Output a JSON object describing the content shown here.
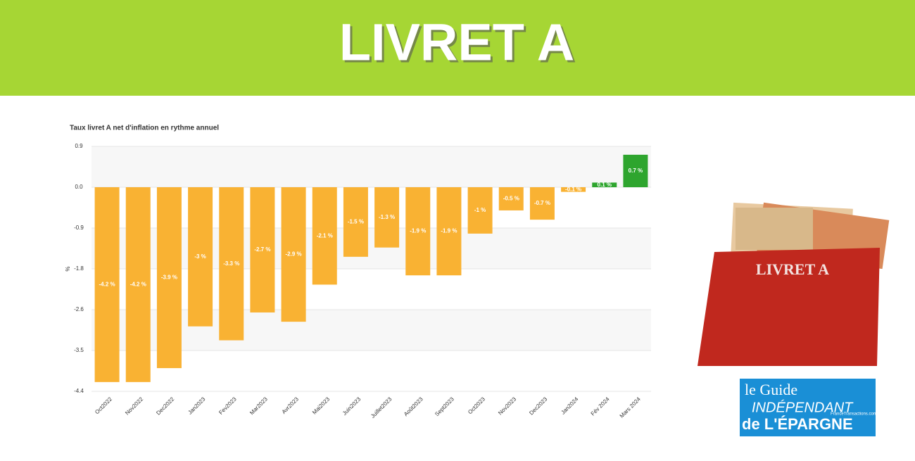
{
  "banner": {
    "title": "LIVRET A"
  },
  "book": {
    "label": "LIVRET A"
  },
  "logo": {
    "line1": "le Guide",
    "line2": "INDÉPENDANT",
    "line3": "de L'ÉPARGNE",
    "site": "FranceTransactions.com"
  },
  "chart_data": {
    "type": "bar",
    "title": "Taux livret A net d'inflation en rythme annuel",
    "y_label": "%",
    "categories": [
      "Oct2022",
      "Nov2022",
      "Dec2022",
      "Jan2023",
      "Fev2023",
      "Mar2023",
      "Avr2023",
      "Mai2023",
      "Juin2023",
      "Juillet2023",
      "Août2023",
      "Sept2023",
      "Oct2023",
      "Nov2023",
      "Dec2023",
      "Jan2024",
      "Fév 2024",
      "Mars 2024"
    ],
    "values": [
      -4.2,
      -4.2,
      -3.9,
      -3,
      -3.3,
      -2.7,
      -2.9,
      -2.1,
      -1.5,
      -1.3,
      -1.9,
      -1.9,
      -1,
      -0.5,
      -0.7,
      -0.1,
      0.1,
      0.7
    ],
    "value_labels": [
      "-4.2 %",
      "-4.2 %",
      "-3.9 %",
      "-3 %",
      "-3.3 %",
      "-2.7 %",
      "-2.9 %",
      "-2.1 %",
      "-1.5 %",
      "-1.3 %",
      "-1.9 %",
      "-1.9 %",
      "-1 %",
      "-0.5 %",
      "-0.7 %",
      "-0.1 %",
      "0.1 %",
      "0.7 %"
    ],
    "colors": [
      "#f9b233",
      "#f9b233",
      "#f9b233",
      "#f9b233",
      "#f9b233",
      "#f9b233",
      "#f9b233",
      "#f9b233",
      "#f9b233",
      "#f9b233",
      "#f9b233",
      "#f9b233",
      "#f9b233",
      "#f9b233",
      "#f9b233",
      "#f9b233",
      "#2ea52e",
      "#2ea52e"
    ],
    "ylim": [
      -4.4,
      0.88
    ],
    "yticks": [
      {
        "value": 0.88,
        "label": "0.9"
      },
      {
        "value": 0,
        "label": "0.0"
      },
      {
        "value": -0.88,
        "label": "-0.9"
      },
      {
        "value": -1.76,
        "label": "-1.8"
      },
      {
        "value": -2.64,
        "label": "-2.6"
      },
      {
        "value": -3.52,
        "label": "-3.5"
      },
      -4.4
    ],
    "grid": true
  }
}
